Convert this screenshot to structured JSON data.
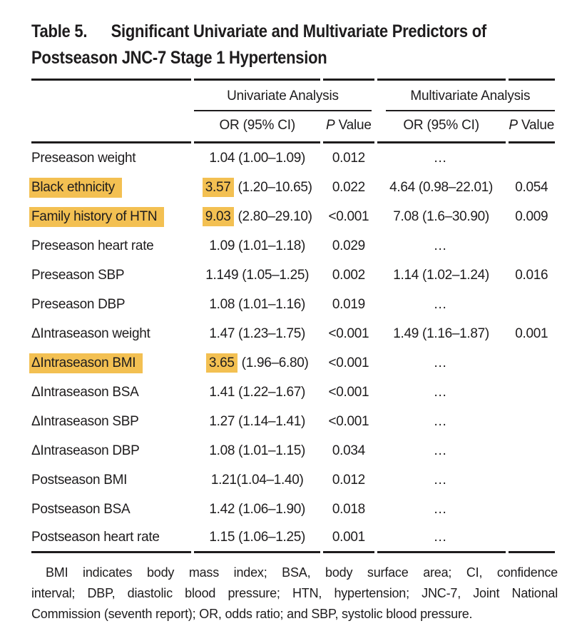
{
  "page": {
    "background": "#FFFFFF",
    "text_color": "#1E1C1D"
  },
  "title": {
    "label": "Table 5.",
    "line1": "Significant Univariate and Multivariate Predictors of",
    "line2": "Postseason JNC-7 Stage 1 Hypertension"
  },
  "table": {
    "highlight_color": "#F3C052",
    "group_headers": {
      "univariate": "Univariate Analysis",
      "multivariate": "Multivariate Analysis"
    },
    "sub_headers": {
      "or_ci": "OR (95% CI)",
      "p_label_italic": "P",
      "p_label_rest": " Value"
    },
    "rows": [
      {
        "label": "Preseason weight",
        "label_highlighted": false,
        "or_highlight": "",
        "or_text": "1.04 (1.00–1.09)",
        "p": "0.012",
        "multi_or": "…",
        "multi_p": ""
      },
      {
        "label": "Black ethnicity",
        "label_highlighted": true,
        "or_highlight": "3.57",
        "or_text": " (1.20–10.65)",
        "p": "0.022",
        "multi_or": "4.64 (0.98–22.01)",
        "multi_p": "0.054"
      },
      {
        "label": "Family history of HTN",
        "label_highlighted": true,
        "or_highlight": "9.03",
        "or_text": " (2.80–29.10)",
        "p": "<0.001",
        "multi_or": "7.08 (1.6–30.90)",
        "multi_p": "0.009"
      },
      {
        "label": "Preseason heart rate",
        "label_highlighted": false,
        "or_highlight": "",
        "or_text": "1.09 (1.01–1.18)",
        "p": "0.029",
        "multi_or": "…",
        "multi_p": ""
      },
      {
        "label": "Preseason SBP",
        "label_highlighted": false,
        "or_highlight": "",
        "or_text": "1.149 (1.05–1.25)",
        "p": "0.002",
        "multi_or": "1.14 (1.02–1.24)",
        "multi_p": "0.016"
      },
      {
        "label": "Preseason DBP",
        "label_highlighted": false,
        "or_highlight": "",
        "or_text": "1.08 (1.01–1.16)",
        "p": "0.019",
        "multi_or": "…",
        "multi_p": ""
      },
      {
        "label": "ΔIntraseason weight",
        "label_highlighted": false,
        "or_highlight": "",
        "or_text": "1.47 (1.23–1.75)",
        "p": "<0.001",
        "multi_or": "1.49 (1.16–1.87)",
        "multi_p": "0.001"
      },
      {
        "label": "ΔIntraseason BMI",
        "label_highlighted": true,
        "or_highlight": "3.65",
        "or_text": " (1.96–6.80)",
        "p": "<0.001",
        "multi_or": "…",
        "multi_p": ""
      },
      {
        "label": "ΔIntraseason BSA",
        "label_highlighted": false,
        "or_highlight": "",
        "or_text": "1.41 (1.22–1.67)",
        "p": "<0.001",
        "multi_or": "…",
        "multi_p": ""
      },
      {
        "label": "ΔIntraseason SBP",
        "label_highlighted": false,
        "or_highlight": "",
        "or_text": "1.27 (1.14–1.41)",
        "p": "<0.001",
        "multi_or": "…",
        "multi_p": ""
      },
      {
        "label": "ΔIntraseason DBP",
        "label_highlighted": false,
        "or_highlight": "",
        "or_text": "1.08 (1.01–1.15)",
        "p": "0.034",
        "multi_or": "…",
        "multi_p": ""
      },
      {
        "label": "Postseason BMI",
        "label_highlighted": false,
        "or_highlight": "",
        "or_text": "1.21(1.04–1.40)",
        "p": "0.012",
        "multi_or": "…",
        "multi_p": ""
      },
      {
        "label": "Postseason BSA",
        "label_highlighted": false,
        "or_highlight": "",
        "or_text": "1.42 (1.06–1.90)",
        "p": "0.018",
        "multi_or": "…",
        "multi_p": ""
      },
      {
        "label": "Postseason heart rate",
        "label_highlighted": false,
        "or_highlight": "",
        "or_text": "1.15 (1.06–1.25)",
        "p": "0.001",
        "multi_or": "…",
        "multi_p": ""
      }
    ]
  },
  "footnote": {
    "lines": [
      "BMI indicates body mass index; BSA, body surface area; CI, confidence",
      "interval; DBP, diastolic blood pressure; HTN, hypertension; JNC-7, Joint National",
      "Commission (seventh report); OR, odds ratio; and SBP, systolic blood pressure."
    ]
  }
}
